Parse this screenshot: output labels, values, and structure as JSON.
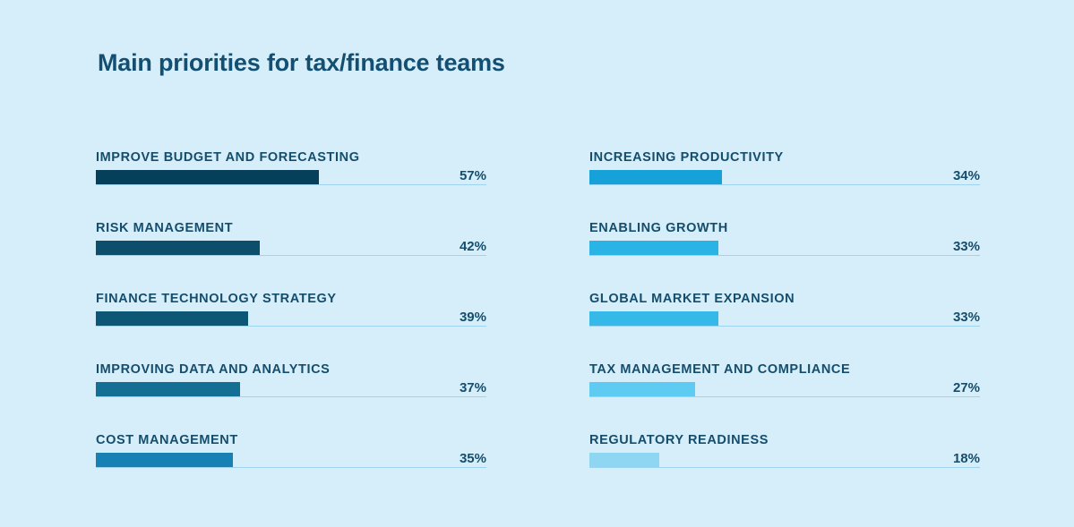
{
  "chart_data": {
    "type": "bar",
    "orientation": "horizontal",
    "title": "Main priorities for tax/finance teams",
    "xlim": [
      0,
      100
    ],
    "unit": "%",
    "grid": false,
    "columns": [
      {
        "categories": [
          "IMPROVE BUDGET AND FORECASTING",
          "RISK MANAGEMENT",
          "FINANCE TECHNOLOGY STRATEGY",
          "IMPROVING DATA AND ANALYTICS",
          "COST MANAGEMENT"
        ],
        "values": [
          57,
          42,
          39,
          37,
          35
        ],
        "labels": [
          "57%",
          "42%",
          "39%",
          "37%",
          "35%"
        ],
        "colors": [
          "#063f5a",
          "#0c4e6b",
          "#0e5675",
          "#146f95",
          "#1681b2"
        ]
      },
      {
        "categories": [
          "INCREASING PRODUCTIVITY",
          "ENABLING GROWTH",
          "GLOBAL MARKET EXPANSION",
          "TAX MANAGEMENT AND COMPLIANCE",
          "REGULATORY READINESS"
        ],
        "values": [
          34,
          33,
          33,
          27,
          18
        ],
        "labels": [
          "34%",
          "33%",
          "33%",
          "27%",
          "18%"
        ],
        "colors": [
          "#17a1d9",
          "#2ab4e6",
          "#35b9e8",
          "#5ecbf2",
          "#8fd6f2"
        ]
      }
    ]
  },
  "colors": {
    "background": "#d6eef9",
    "text": "#154d6c",
    "track_line": "#9fd3ef"
  }
}
